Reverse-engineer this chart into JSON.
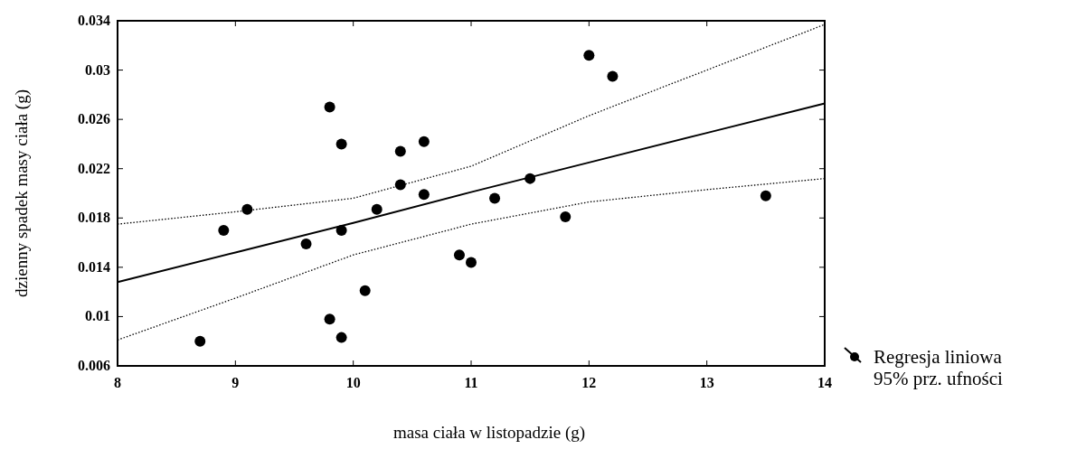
{
  "chart_data": {
    "type": "scatter",
    "xlabel": "masa ciała w listopadzie (g)",
    "ylabel": "dzienny spadek masy ciała (g)",
    "xlim": [
      8,
      14
    ],
    "ylim": [
      0.006,
      0.034
    ],
    "xticks": [
      8,
      9,
      10,
      11,
      12,
      13,
      14
    ],
    "yticks": [
      0.006,
      0.01,
      0.014,
      0.018,
      0.022,
      0.026,
      0.03,
      0.034
    ],
    "grid": false,
    "legend": "right",
    "annotations": [
      "95% prz. ufności"
    ],
    "series": [
      {
        "marker": "circle",
        "color": "#000000",
        "x": [
          8.7,
          8.9,
          9.1,
          9.6,
          9.8,
          9.8,
          9.9,
          9.9,
          9.9,
          10.1,
          10.2,
          10.4,
          10.4,
          10.6,
          10.6,
          10.9,
          11.0,
          11.2,
          11.5,
          11.8,
          12.0,
          12.2,
          13.5
        ],
        "values": [
          0.008,
          0.017,
          0.0187,
          0.0159,
          0.027,
          0.0098,
          0.024,
          0.017,
          0.0083,
          0.0121,
          0.0187,
          0.0234,
          0.0207,
          0.0242,
          0.0199,
          0.015,
          0.0144,
          0.0196,
          0.0212,
          0.0181,
          0.0312,
          0.0295,
          0.0198
        ]
      },
      {
        "type": "line",
        "name": "Regresja liniowa",
        "color": "#000000",
        "line_style": "solid",
        "x": [
          8,
          9,
          10,
          11,
          12,
          13,
          14
        ],
        "values": [
          0.0128,
          0.0152,
          0.0176,
          0.0201,
          0.0225,
          0.0249,
          0.0273
        ]
      },
      {
        "type": "line",
        "color": "#000000",
        "line_style": "dotted",
        "x": [
          8,
          9,
          10,
          11,
          12,
          13,
          14
        ],
        "values": [
          0.0081,
          0.0115,
          0.015,
          0.0175,
          0.0193,
          0.0203,
          0.0212
        ]
      },
      {
        "type": "line",
        "color": "#000000",
        "line_style": "dotted",
        "x": [
          8,
          9,
          10,
          11,
          12,
          13,
          14
        ],
        "values": [
          0.0175,
          0.0185,
          0.0196,
          0.0222,
          0.0263,
          0.03,
          0.0337
        ]
      }
    ]
  }
}
